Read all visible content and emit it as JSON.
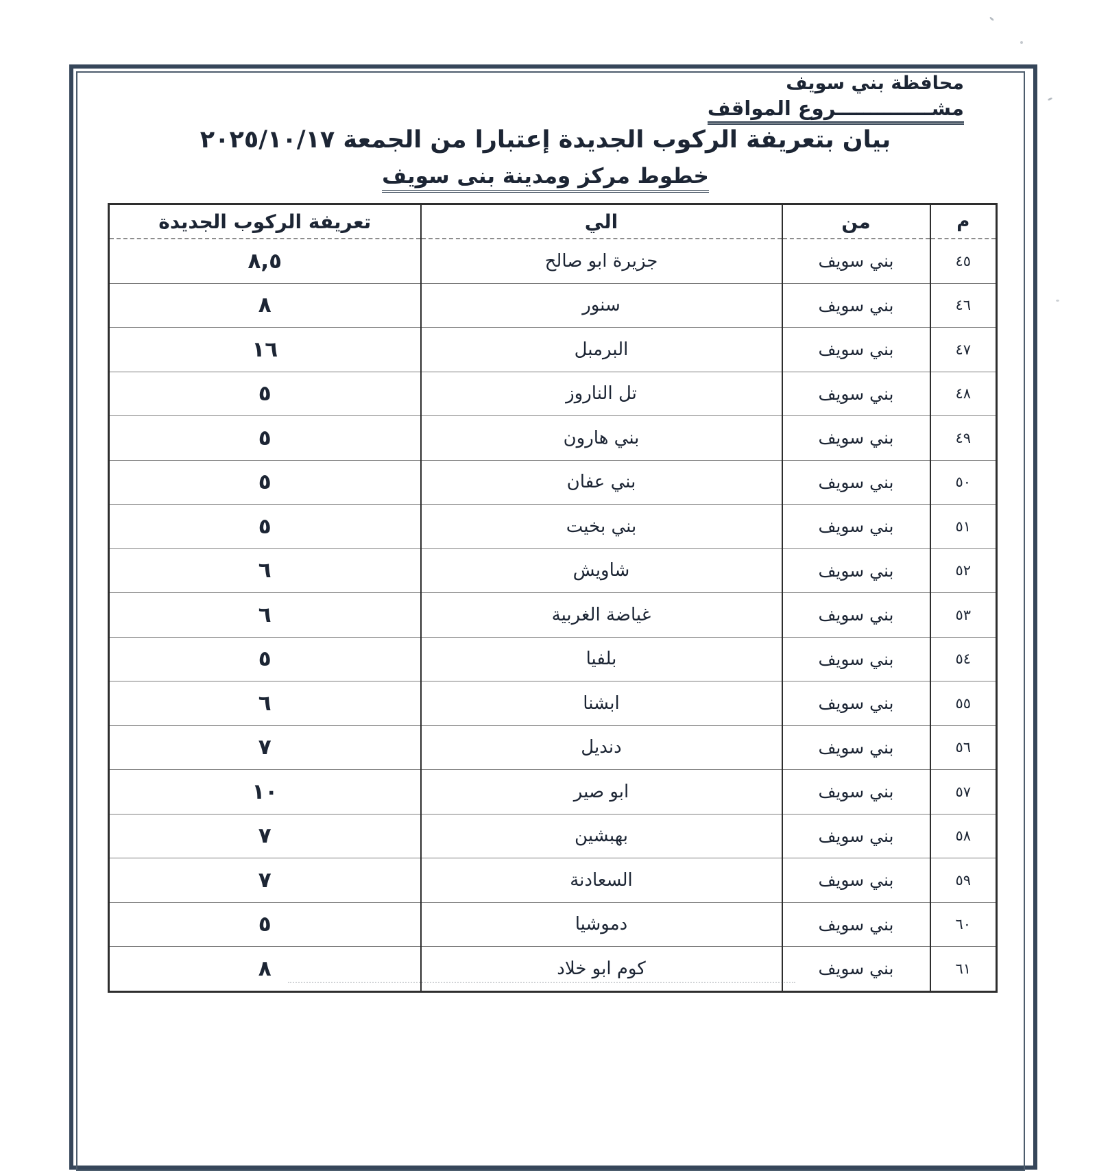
{
  "page": {
    "org_line1": "محافظة بني سويف",
    "org_line2": "مشــــــــــــــروع المواقف",
    "title": "بيان بتعريفة الركوب الجديدة إعتبارا من الجمعة ٢٠٢٥/١٠/١٧",
    "subtitle": "خطوط مركز ومدينة بنى سويف"
  },
  "table": {
    "headers": {
      "num": "م",
      "from": "من",
      "to": "الي",
      "fare": "تعريفة الركوب الجديدة"
    },
    "rows": [
      {
        "num": "٤٥",
        "from": "بني سويف",
        "to": "جزيرة ابو صالح",
        "fare": "٨,٥"
      },
      {
        "num": "٤٦",
        "from": "بني سويف",
        "to": "سنور",
        "fare": "٨"
      },
      {
        "num": "٤٧",
        "from": "بني سويف",
        "to": "البرمبل",
        "fare": "١٦"
      },
      {
        "num": "٤٨",
        "from": "بني سويف",
        "to": "تل الناروز",
        "fare": "٥"
      },
      {
        "num": "٤٩",
        "from": "بني سويف",
        "to": "بني هارون",
        "fare": "٥"
      },
      {
        "num": "٥٠",
        "from": "بني سويف",
        "to": "بني عفان",
        "fare": "٥"
      },
      {
        "num": "٥١",
        "from": "بني سويف",
        "to": "بني بخيت",
        "fare": "٥"
      },
      {
        "num": "٥٢",
        "from": "بني سويف",
        "to": "شاويش",
        "fare": "٦"
      },
      {
        "num": "٥٣",
        "from": "بني سويف",
        "to": "غياضة الغربية",
        "fare": "٦"
      },
      {
        "num": "٥٤",
        "from": "بني سويف",
        "to": "بلفيا",
        "fare": "٥"
      },
      {
        "num": "٥٥",
        "from": "بني سويف",
        "to": "ابشنا",
        "fare": "٦"
      },
      {
        "num": "٥٦",
        "from": "بني سويف",
        "to": "دنديل",
        "fare": "٧"
      },
      {
        "num": "٥٧",
        "from": "بني سويف",
        "to": "ابو صير",
        "fare": "١٠"
      },
      {
        "num": "٥٨",
        "from": "بني سويف",
        "to": "بهبشين",
        "fare": "٧"
      },
      {
        "num": "٥٩",
        "from": "بني سويف",
        "to": "السعادنة",
        "fare": "٧"
      },
      {
        "num": "٦٠",
        "from": "بني سويف",
        "to": "دموشيا",
        "fare": "٥"
      },
      {
        "num": "٦١",
        "from": "بني سويف",
        "to": "كوم ابو خلاد",
        "fare": "٨"
      }
    ]
  },
  "colors": {
    "frame": "#36465a",
    "ink": "#1c2534",
    "grid_dark": "#2e2e2e",
    "grid_light": "#7b7b7b"
  }
}
